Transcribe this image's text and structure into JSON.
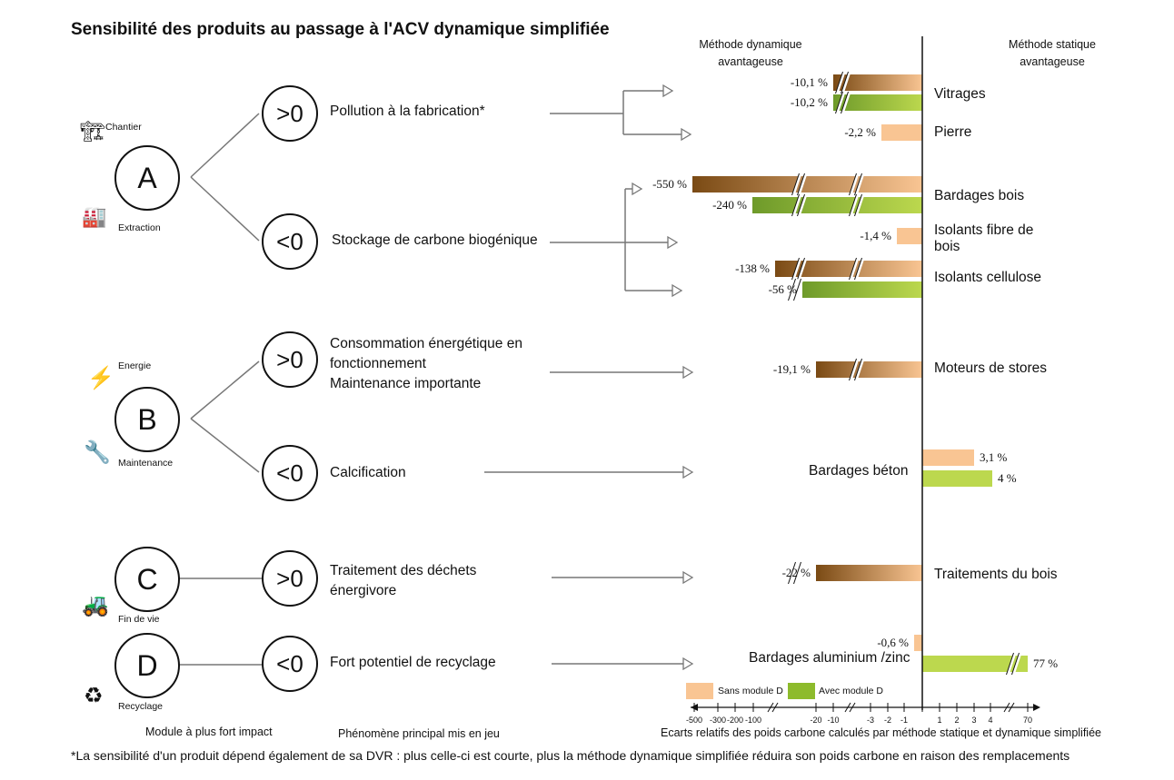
{
  "title": "Sensibilité des produits au passage à l'ACV dynamique simplifiée",
  "headers": {
    "left": [
      "Méthode dynamique",
      "avantageuse"
    ],
    "right": [
      "Méthode statique",
      "avantageuse"
    ]
  },
  "modules": [
    {
      "letter": "A",
      "icons": [
        {
          "name": "chantier-icon",
          "label": "Chantier"
        },
        {
          "name": "extraction-icon",
          "label": "Extraction"
        }
      ]
    },
    {
      "letter": "B",
      "icons": [
        {
          "name": "energie-icon",
          "label": "Energie"
        },
        {
          "name": "maintenance-icon",
          "label": "Maintenance"
        }
      ]
    },
    {
      "letter": "C",
      "icons": [
        {
          "name": "fin-de-vie-icon",
          "label": "Fin de vie"
        }
      ]
    },
    {
      "letter": "D",
      "icons": [
        {
          "name": "recyclage-icon",
          "label": "Recyclage"
        }
      ]
    }
  ],
  "phenomena": [
    {
      "sign": ">0",
      "text": [
        "Pollution à la fabrication*"
      ]
    },
    {
      "sign": "<0",
      "text": [
        "Stockage de carbone biogénique"
      ]
    },
    {
      "sign": ">0",
      "text": [
        "Consommation énergétique en",
        "fonctionnement",
        "Maintenance importante"
      ]
    },
    {
      "sign": "<0",
      "text": [
        "Calcification"
      ]
    },
    {
      "sign": ">0",
      "text": [
        "Traitement des déchets",
        "énergivore"
      ]
    },
    {
      "sign": "<0",
      "text": [
        "Fort potentiel de recyclage"
      ]
    }
  ],
  "products": [
    {
      "label": [
        "Vitrages"
      ],
      "bars": [
        {
          "series": "sans",
          "value": -10.1,
          "text": "-10,1 %"
        },
        {
          "series": "avec",
          "value": -10.2,
          "text": "-10,2 %"
        }
      ]
    },
    {
      "label": [
        "Pierre"
      ],
      "bars": [
        {
          "series": "sans",
          "value": -2.2,
          "text": "-2,2 %"
        }
      ]
    },
    {
      "label": [
        "Bardages bois"
      ],
      "bars": [
        {
          "series": "sans",
          "value": -550,
          "text": "-550 %"
        },
        {
          "series": "avec",
          "value": -240,
          "text": "-240 %"
        }
      ]
    },
    {
      "label": [
        "Isolants fibre de",
        "bois"
      ],
      "bars": [
        {
          "series": "sans",
          "value": -1.4,
          "text": "-1,4 %"
        }
      ]
    },
    {
      "label": [
        "Isolants cellulose"
      ],
      "bars": [
        {
          "series": "sans",
          "value": -138,
          "text": "-138 %"
        },
        {
          "series": "avec",
          "value": -56,
          "text": "-56 %"
        }
      ]
    },
    {
      "label": [
        "Moteurs de stores"
      ],
      "bars": [
        {
          "series": "sans",
          "value": -19.1,
          "text": "-19,1 %"
        }
      ]
    },
    {
      "label": [
        "Bardages béton"
      ],
      "bars": [
        {
          "series": "sans",
          "value": 3.1,
          "text": "3,1 %"
        },
        {
          "series": "avec",
          "value": 4,
          "text": "4 %"
        }
      ]
    },
    {
      "label": [
        "Traitements du bois"
      ],
      "bars": [
        {
          "series": "sans",
          "value": -22,
          "text": "-22 %"
        }
      ]
    },
    {
      "label": [
        "Bardages aluminium /zinc"
      ],
      "bars": [
        {
          "series": "sans",
          "value": -0.6,
          "text": "-0,6 %"
        },
        {
          "series": "avec",
          "value": 77,
          "text": "77 %"
        }
      ]
    }
  ],
  "legend": [
    {
      "series": "sans",
      "label": "Sans module D",
      "color": "#f9c593"
    },
    {
      "series": "avec",
      "label": "Avec module D",
      "color": "#8dbb2c"
    }
  ],
  "colors": {
    "sans_light": "#f9c593",
    "sans_dark": "#7a4a14",
    "avec_light": "#bcd84e",
    "avec_dark": "#6e9a2a"
  },
  "axis": {
    "ticks": [
      "-500",
      "-300",
      "-200",
      "-100",
      "-20",
      "-10",
      "-3",
      "-2",
      "-1",
      "1",
      "2",
      "3",
      "4",
      "70"
    ],
    "label": "Ecarts relatifs des poids carbone calculés par méthode statique et dynamique simplifiée"
  },
  "bottom_labels": {
    "modules": "Module à plus fort impact",
    "phenomena": "Phénomène principal mis en jeu"
  },
  "footnote": "*La sensibilité d'un produit dépend également de sa DVR : plus celle-ci est courte, plus la méthode dynamique simplifiée réduira son poids carbone en raison des remplacements"
}
